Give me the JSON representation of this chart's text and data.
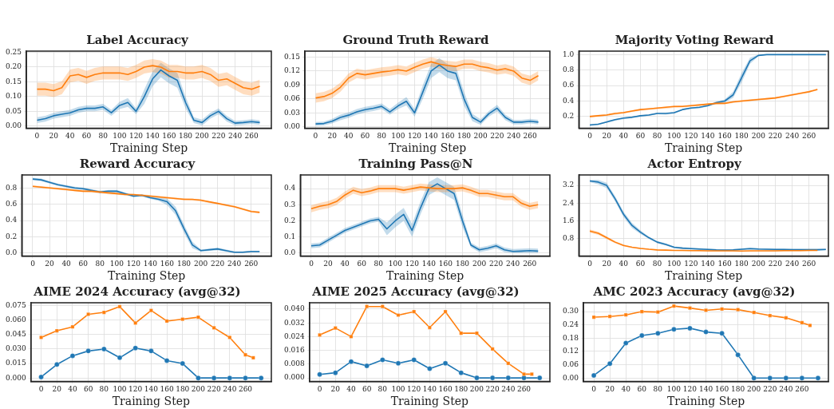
{
  "chart_data": [
    {
      "type": "line",
      "title": "Label Accuracy",
      "xlabel": "Training Step",
      "xlim": [
        -13,
        284
      ],
      "ylim": [
        -0.007,
        0.254
      ],
      "xticks": [
        0,
        20,
        40,
        60,
        80,
        100,
        120,
        140,
        160,
        180,
        200,
        220,
        240,
        260
      ],
      "yticks": [
        {
          "value": 0,
          "label": "0.00"
        },
        0.05,
        {
          "value": 0.1,
          "label": "0.10"
        },
        0.15,
        {
          "value": 0.2,
          "label": "0.20"
        },
        0.25
      ],
      "grid": true,
      "line_style": "solid",
      "series": [
        {
          "color": "#1f77b4",
          "x": [
            0,
            10,
            20,
            30,
            40,
            50,
            60,
            70,
            80,
            90,
            100,
            110,
            120,
            130,
            140,
            150,
            160,
            170,
            180,
            190,
            200,
            210,
            220,
            230,
            240,
            250,
            260,
            270
          ],
          "values": [
            0.02,
            0.025,
            0.035,
            0.04,
            0.045,
            0.055,
            0.06,
            0.06,
            0.065,
            0.045,
            0.07,
            0.08,
            0.05,
            0.1,
            0.16,
            0.19,
            0.17,
            0.155,
            0.08,
            0.02,
            0.012,
            0.035,
            0.05,
            0.025,
            0.01,
            0.012,
            0.015,
            0.012
          ],
          "lower": [
            0.01,
            0.015,
            0.025,
            0.03,
            0.035,
            0.045,
            0.05,
            0.05,
            0.055,
            0.035,
            0.058,
            0.065,
            0.04,
            0.075,
            0.135,
            0.165,
            0.145,
            0.13,
            0.06,
            0.01,
            0.002,
            0.025,
            0.04,
            0.015,
            0.002,
            0.004,
            0.007,
            0.004
          ],
          "upper": [
            0.03,
            0.035,
            0.045,
            0.05,
            0.055,
            0.065,
            0.07,
            0.07,
            0.075,
            0.055,
            0.082,
            0.095,
            0.06,
            0.125,
            0.185,
            0.215,
            0.195,
            0.18,
            0.1,
            0.03,
            0.022,
            0.045,
            0.06,
            0.035,
            0.018,
            0.02,
            0.023,
            0.02
          ]
        },
        {
          "color": "#ff7f0e",
          "x": [
            0,
            10,
            20,
            30,
            40,
            50,
            60,
            70,
            80,
            90,
            100,
            110,
            120,
            130,
            140,
            150,
            160,
            170,
            180,
            190,
            200,
            210,
            220,
            230,
            240,
            250,
            260,
            270
          ],
          "values": [
            0.125,
            0.125,
            0.12,
            0.13,
            0.17,
            0.175,
            0.165,
            0.175,
            0.18,
            0.18,
            0.18,
            0.175,
            0.185,
            0.2,
            0.205,
            0.2,
            0.185,
            0.185,
            0.18,
            0.18,
            0.185,
            0.175,
            0.155,
            0.16,
            0.145,
            0.13,
            0.125,
            0.135
          ],
          "lower": [
            0.103,
            0.103,
            0.098,
            0.108,
            0.148,
            0.153,
            0.143,
            0.153,
            0.158,
            0.158,
            0.158,
            0.153,
            0.163,
            0.178,
            0.183,
            0.178,
            0.163,
            0.163,
            0.158,
            0.158,
            0.163,
            0.153,
            0.133,
            0.138,
            0.123,
            0.108,
            0.103,
            0.113
          ],
          "upper": [
            0.147,
            0.147,
            0.142,
            0.152,
            0.192,
            0.197,
            0.187,
            0.197,
            0.202,
            0.202,
            0.202,
            0.197,
            0.207,
            0.222,
            0.227,
            0.222,
            0.207,
            0.207,
            0.202,
            0.202,
            0.207,
            0.197,
            0.177,
            0.182,
            0.167,
            0.152,
            0.147,
            0.157
          ]
        }
      ]
    },
    {
      "type": "line",
      "title": "Ground Truth Reward",
      "xlabel": "Training Step",
      "xlim": [
        -13,
        284
      ],
      "ylim": [
        -0.003,
        0.163
      ],
      "xticks": [
        0,
        20,
        40,
        60,
        80,
        100,
        120,
        140,
        160,
        180,
        200,
        220,
        240,
        260
      ],
      "yticks": [
        {
          "value": 0,
          "label": "0.00"
        },
        0.03,
        0.06,
        0.09,
        0.12,
        0.15
      ],
      "grid": true,
      "line_style": "solid",
      "series": [
        {
          "color": "#1f77b4",
          "x": [
            0,
            10,
            20,
            30,
            40,
            50,
            60,
            70,
            80,
            90,
            100,
            110,
            120,
            130,
            140,
            150,
            160,
            170,
            180,
            190,
            200,
            210,
            220,
            230,
            240,
            250,
            260,
            270
          ],
          "values": [
            0.006,
            0.007,
            0.012,
            0.02,
            0.025,
            0.032,
            0.037,
            0.04,
            0.044,
            0.032,
            0.045,
            0.055,
            0.03,
            0.075,
            0.12,
            0.133,
            0.12,
            0.115,
            0.06,
            0.02,
            0.01,
            0.028,
            0.04,
            0.02,
            0.01,
            0.01,
            0.012,
            0.01
          ],
          "lower": [
            0.002,
            0.003,
            0.007,
            0.014,
            0.019,
            0.026,
            0.031,
            0.034,
            0.038,
            0.026,
            0.038,
            0.046,
            0.022,
            0.06,
            0.105,
            0.118,
            0.105,
            0.1,
            0.045,
            0.012,
            0.004,
            0.022,
            0.033,
            0.014,
            0.005,
            0.005,
            0.007,
            0.005
          ],
          "upper": [
            0.01,
            0.011,
            0.017,
            0.026,
            0.031,
            0.038,
            0.043,
            0.046,
            0.05,
            0.038,
            0.052,
            0.064,
            0.038,
            0.09,
            0.135,
            0.148,
            0.135,
            0.13,
            0.075,
            0.028,
            0.016,
            0.034,
            0.047,
            0.026,
            0.015,
            0.015,
            0.017,
            0.015
          ]
        },
        {
          "color": "#ff7f0e",
          "x": [
            0,
            10,
            20,
            30,
            40,
            50,
            60,
            70,
            80,
            90,
            100,
            110,
            120,
            130,
            140,
            150,
            160,
            170,
            180,
            190,
            200,
            210,
            220,
            230,
            240,
            250,
            260,
            270
          ],
          "values": [
            0.062,
            0.065,
            0.072,
            0.085,
            0.105,
            0.115,
            0.112,
            0.115,
            0.118,
            0.12,
            0.123,
            0.12,
            0.128,
            0.135,
            0.14,
            0.135,
            0.132,
            0.13,
            0.135,
            0.135,
            0.13,
            0.127,
            0.122,
            0.125,
            0.12,
            0.105,
            0.1,
            0.11
          ],
          "lower": [
            0.052,
            0.055,
            0.062,
            0.075,
            0.095,
            0.105,
            0.102,
            0.105,
            0.108,
            0.11,
            0.113,
            0.11,
            0.118,
            0.125,
            0.13,
            0.125,
            0.122,
            0.12,
            0.125,
            0.125,
            0.12,
            0.117,
            0.112,
            0.115,
            0.11,
            0.095,
            0.09,
            0.1
          ],
          "upper": [
            0.072,
            0.075,
            0.082,
            0.095,
            0.115,
            0.125,
            0.122,
            0.125,
            0.128,
            0.13,
            0.133,
            0.13,
            0.138,
            0.145,
            0.15,
            0.145,
            0.142,
            0.14,
            0.145,
            0.145,
            0.14,
            0.137,
            0.132,
            0.135,
            0.13,
            0.115,
            0.11,
            0.12
          ]
        }
      ]
    },
    {
      "type": "line",
      "title": "Majority Voting Reward",
      "xlabel": "Training Step",
      "xlim": [
        -13,
        283
      ],
      "ylim": [
        0.05,
        1.045
      ],
      "xticks": [
        0,
        20,
        40,
        60,
        80,
        100,
        120,
        140,
        160,
        180,
        200,
        220,
        240,
        260
      ],
      "yticks": [
        0.2,
        0.4,
        0.6,
        0.8,
        {
          "value": 1,
          "label": "1.0"
        }
      ],
      "grid": true,
      "line_style": "solid",
      "series": [
        {
          "color": "#1f77b4",
          "x": [
            0,
            10,
            20,
            30,
            40,
            50,
            60,
            70,
            80,
            90,
            100,
            110,
            120,
            130,
            140,
            150,
            160,
            170,
            180,
            190,
            200,
            210,
            220,
            230,
            240,
            250,
            260,
            270,
            280
          ],
          "values": [
            0.09,
            0.1,
            0.13,
            0.16,
            0.18,
            0.19,
            0.21,
            0.22,
            0.24,
            0.24,
            0.25,
            0.29,
            0.31,
            0.32,
            0.34,
            0.38,
            0.4,
            0.48,
            0.7,
            0.92,
            0.99,
            1.0,
            1.0,
            1.0,
            1.0,
            1.0,
            1.0,
            1.0,
            1.0
          ],
          "lower": [
            0.08,
            0.09,
            0.12,
            0.145,
            0.165,
            0.18,
            0.195,
            0.21,
            0.23,
            0.225,
            0.235,
            0.28,
            0.3,
            0.305,
            0.33,
            0.365,
            0.38,
            0.44,
            0.64,
            0.88,
            0.98,
            0.995,
            0.995,
            0.995,
            0.995,
            0.995,
            0.995,
            0.995,
            0.995
          ],
          "upper": [
            0.1,
            0.11,
            0.14,
            0.165,
            0.185,
            0.2,
            0.215,
            0.23,
            0.25,
            0.245,
            0.255,
            0.3,
            0.32,
            0.325,
            0.35,
            0.395,
            0.42,
            0.52,
            0.76,
            0.96,
            1.0,
            1.0,
            1.0,
            1.0,
            1.0,
            1.0,
            1.0,
            1.0,
            1.0
          ]
        },
        {
          "color": "#ff7f0e",
          "x": [
            0,
            10,
            20,
            30,
            40,
            50,
            60,
            70,
            80,
            90,
            100,
            110,
            120,
            130,
            140,
            150,
            160,
            170,
            180,
            190,
            200,
            210,
            220,
            230,
            240,
            250,
            260,
            270
          ],
          "values": [
            0.2,
            0.21,
            0.22,
            0.24,
            0.25,
            0.27,
            0.29,
            0.3,
            0.31,
            0.32,
            0.33,
            0.33,
            0.34,
            0.35,
            0.36,
            0.37,
            0.37,
            0.39,
            0.4,
            0.41,
            0.42,
            0.43,
            0.44,
            0.46,
            0.48,
            0.5,
            0.52,
            0.55
          ],
          "lower": [
            0.188,
            0.198,
            0.208,
            0.223,
            0.238,
            0.258,
            0.273,
            0.283,
            0.293,
            0.303,
            0.313,
            0.318,
            0.328,
            0.338,
            0.348,
            0.353,
            0.358,
            0.373,
            0.388,
            0.398,
            0.408,
            0.418,
            0.428,
            0.448,
            0.468,
            0.488,
            0.508,
            0.538
          ],
          "upper": [
            0.212,
            0.222,
            0.232,
            0.247,
            0.262,
            0.282,
            0.297,
            0.307,
            0.317,
            0.327,
            0.337,
            0.342,
            0.352,
            0.362,
            0.372,
            0.377,
            0.382,
            0.397,
            0.412,
            0.422,
            0.432,
            0.442,
            0.452,
            0.472,
            0.492,
            0.512,
            0.532,
            0.562
          ]
        }
      ]
    },
    {
      "type": "line",
      "title": "Reward Accuracy",
      "xlabel": "Training Step",
      "xlim": [
        -13,
        284
      ],
      "ylim": [
        -0.036,
        0.96
      ],
      "xticks": [
        0,
        20,
        40,
        60,
        80,
        100,
        120,
        140,
        160,
        180,
        200,
        220,
        240,
        260
      ],
      "yticks": [
        {
          "value": 0,
          "label": "0.0"
        },
        0.2,
        0.4,
        0.6,
        0.8
      ],
      "grid": true,
      "line_style": "solid",
      "series": [
        {
          "color": "#1f77b4",
          "x": [
            0,
            10,
            20,
            30,
            40,
            50,
            60,
            70,
            80,
            90,
            100,
            110,
            120,
            130,
            140,
            150,
            160,
            170,
            180,
            190,
            200,
            210,
            220,
            230,
            240,
            250,
            260,
            270
          ],
          "values": [
            0.91,
            0.9,
            0.87,
            0.84,
            0.82,
            0.8,
            0.79,
            0.77,
            0.75,
            0.76,
            0.76,
            0.73,
            0.7,
            0.71,
            0.68,
            0.66,
            0.63,
            0.52,
            0.3,
            0.1,
            0.03,
            0.04,
            0.05,
            0.03,
            0.01,
            0.01,
            0.02,
            0.02
          ],
          "lower": [
            0.895,
            0.885,
            0.855,
            0.825,
            0.805,
            0.785,
            0.775,
            0.755,
            0.735,
            0.745,
            0.745,
            0.715,
            0.685,
            0.695,
            0.665,
            0.64,
            0.59,
            0.47,
            0.25,
            0.06,
            0.015,
            0.025,
            0.035,
            0.015,
            0.0,
            0.0,
            0.005,
            0.005
          ],
          "upper": [
            0.925,
            0.915,
            0.885,
            0.855,
            0.835,
            0.815,
            0.805,
            0.785,
            0.765,
            0.775,
            0.775,
            0.745,
            0.715,
            0.725,
            0.695,
            0.68,
            0.67,
            0.57,
            0.35,
            0.14,
            0.045,
            0.055,
            0.065,
            0.045,
            0.02,
            0.02,
            0.025,
            0.025
          ]
        },
        {
          "color": "#ff7f0e",
          "x": [
            0,
            10,
            20,
            30,
            40,
            50,
            60,
            70,
            80,
            90,
            100,
            110,
            120,
            130,
            140,
            150,
            160,
            170,
            180,
            190,
            200,
            210,
            220,
            230,
            240,
            250,
            260,
            270
          ],
          "values": [
            0.82,
            0.81,
            0.8,
            0.79,
            0.78,
            0.77,
            0.76,
            0.76,
            0.75,
            0.74,
            0.73,
            0.72,
            0.72,
            0.71,
            0.7,
            0.69,
            0.68,
            0.67,
            0.66,
            0.66,
            0.65,
            0.63,
            0.61,
            0.59,
            0.57,
            0.54,
            0.51,
            0.5
          ],
          "lower": [
            0.808,
            0.798,
            0.788,
            0.778,
            0.768,
            0.758,
            0.748,
            0.743,
            0.733,
            0.723,
            0.718,
            0.708,
            0.703,
            0.698,
            0.688,
            0.678,
            0.668,
            0.658,
            0.648,
            0.643,
            0.633,
            0.613,
            0.598,
            0.578,
            0.558,
            0.528,
            0.498,
            0.488
          ],
          "upper": [
            0.832,
            0.822,
            0.812,
            0.802,
            0.792,
            0.782,
            0.772,
            0.767,
            0.757,
            0.747,
            0.742,
            0.732,
            0.727,
            0.722,
            0.712,
            0.702,
            0.692,
            0.682,
            0.672,
            0.667,
            0.657,
            0.637,
            0.622,
            0.602,
            0.582,
            0.552,
            0.522,
            0.512
          ]
        }
      ]
    },
    {
      "type": "line",
      "title": "Training Pass@N",
      "xlabel": "Training Step",
      "xlim": [
        -13,
        284
      ],
      "ylim": [
        -0.018,
        0.485
      ],
      "xticks": [
        0,
        20,
        40,
        60,
        80,
        100,
        120,
        140,
        160,
        180,
        200,
        220,
        240,
        260
      ],
      "yticks": [
        {
          "value": 0,
          "label": "0.0"
        },
        0.1,
        0.2,
        0.3,
        0.4
      ],
      "grid": true,
      "line_style": "solid",
      "series": [
        {
          "color": "#1f77b4",
          "x": [
            0,
            10,
            20,
            30,
            40,
            50,
            60,
            70,
            80,
            90,
            100,
            110,
            120,
            130,
            140,
            150,
            160,
            170,
            180,
            190,
            200,
            210,
            220,
            230,
            240,
            250,
            260,
            270
          ],
          "values": [
            0.045,
            0.05,
            0.08,
            0.11,
            0.14,
            0.16,
            0.18,
            0.2,
            0.21,
            0.15,
            0.2,
            0.24,
            0.14,
            0.28,
            0.4,
            0.43,
            0.4,
            0.37,
            0.2,
            0.05,
            0.02,
            0.03,
            0.045,
            0.02,
            0.01,
            0.012,
            0.015,
            0.012
          ],
          "lower": [
            0.03,
            0.035,
            0.065,
            0.095,
            0.125,
            0.145,
            0.165,
            0.185,
            0.195,
            0.11,
            0.16,
            0.2,
            0.1,
            0.24,
            0.36,
            0.39,
            0.36,
            0.33,
            0.16,
            0.035,
            0.005,
            0.015,
            0.03,
            0.005,
            0.0,
            0.0,
            0.0,
            0.0
          ],
          "upper": [
            0.06,
            0.065,
            0.095,
            0.125,
            0.155,
            0.175,
            0.195,
            0.215,
            0.225,
            0.19,
            0.24,
            0.28,
            0.18,
            0.32,
            0.44,
            0.47,
            0.44,
            0.41,
            0.24,
            0.065,
            0.035,
            0.045,
            0.06,
            0.035,
            0.025,
            0.027,
            0.03,
            0.027
          ]
        },
        {
          "color": "#ff7f0e",
          "x": [
            0,
            10,
            20,
            30,
            40,
            50,
            60,
            70,
            80,
            90,
            100,
            110,
            120,
            130,
            140,
            150,
            160,
            170,
            180,
            190,
            200,
            210,
            220,
            230,
            240,
            250,
            260,
            270
          ],
          "values": [
            0.275,
            0.29,
            0.3,
            0.32,
            0.36,
            0.39,
            0.375,
            0.385,
            0.4,
            0.4,
            0.4,
            0.39,
            0.4,
            0.41,
            0.405,
            0.4,
            0.4,
            0.4,
            0.405,
            0.39,
            0.37,
            0.37,
            0.36,
            0.35,
            0.35,
            0.31,
            0.29,
            0.3
          ],
          "lower": [
            0.253,
            0.268,
            0.278,
            0.298,
            0.338,
            0.368,
            0.353,
            0.363,
            0.378,
            0.378,
            0.378,
            0.368,
            0.378,
            0.388,
            0.383,
            0.378,
            0.378,
            0.378,
            0.383,
            0.368,
            0.348,
            0.348,
            0.338,
            0.328,
            0.328,
            0.288,
            0.268,
            0.278
          ],
          "upper": [
            0.297,
            0.312,
            0.322,
            0.342,
            0.382,
            0.412,
            0.397,
            0.407,
            0.422,
            0.422,
            0.422,
            0.412,
            0.422,
            0.432,
            0.427,
            0.422,
            0.422,
            0.422,
            0.427,
            0.412,
            0.392,
            0.392,
            0.382,
            0.372,
            0.372,
            0.332,
            0.312,
            0.322
          ]
        }
      ]
    },
    {
      "type": "line",
      "title": "Actor Entropy",
      "xlabel": "Training Step",
      "xlim": [
        -13,
        283
      ],
      "ylim": [
        0.03,
        3.67
      ],
      "xticks": [
        0,
        20,
        40,
        60,
        80,
        100,
        120,
        140,
        160,
        180,
        200,
        220,
        240,
        260
      ],
      "yticks": [
        0.8,
        1.6,
        2.4,
        3.2
      ],
      "grid": true,
      "line_style": "solid",
      "series": [
        {
          "color": "#1f77b4",
          "x": [
            0,
            10,
            20,
            30,
            40,
            50,
            60,
            70,
            80,
            90,
            100,
            110,
            120,
            130,
            140,
            150,
            160,
            170,
            180,
            190,
            200,
            210,
            220,
            230,
            240,
            250,
            260,
            270,
            280
          ],
          "values": [
            3.4,
            3.35,
            3.2,
            2.6,
            1.9,
            1.4,
            1.1,
            0.85,
            0.65,
            0.55,
            0.42,
            0.38,
            0.36,
            0.34,
            0.32,
            0.3,
            0.29,
            0.3,
            0.33,
            0.36,
            0.34,
            0.33,
            0.32,
            0.32,
            0.31,
            0.31,
            0.31,
            0.31,
            0.32
          ],
          "lower": [
            3.35,
            3.25,
            3.08,
            2.48,
            1.78,
            1.28,
            1.02,
            0.8,
            0.6,
            0.5,
            0.38,
            0.34,
            0.32,
            0.3,
            0.28,
            0.26,
            0.25,
            0.26,
            0.29,
            0.32,
            0.3,
            0.29,
            0.28,
            0.28,
            0.27,
            0.27,
            0.27,
            0.27,
            0.28
          ],
          "upper": [
            3.45,
            3.45,
            3.32,
            2.72,
            2.02,
            1.52,
            1.18,
            0.9,
            0.7,
            0.6,
            0.46,
            0.42,
            0.4,
            0.38,
            0.36,
            0.34,
            0.33,
            0.34,
            0.37,
            0.4,
            0.38,
            0.37,
            0.36,
            0.36,
            0.35,
            0.35,
            0.35,
            0.35,
            0.36
          ]
        },
        {
          "color": "#ff7f0e",
          "x": [
            0,
            10,
            20,
            30,
            40,
            50,
            60,
            70,
            80,
            90,
            100,
            110,
            120,
            130,
            140,
            150,
            160,
            170,
            180,
            190,
            200,
            210,
            220,
            230,
            240,
            250,
            260,
            270
          ],
          "values": [
            1.15,
            1.05,
            0.85,
            0.65,
            0.5,
            0.42,
            0.37,
            0.33,
            0.3,
            0.29,
            0.28,
            0.28,
            0.27,
            0.27,
            0.26,
            0.26,
            0.26,
            0.26,
            0.25,
            0.26,
            0.26,
            0.26,
            0.26,
            0.27,
            0.27,
            0.27,
            0.28,
            0.28
          ],
          "lower": [
            1.08,
            0.98,
            0.79,
            0.6,
            0.46,
            0.39,
            0.34,
            0.31,
            0.28,
            0.27,
            0.26,
            0.255,
            0.25,
            0.245,
            0.24,
            0.24,
            0.24,
            0.235,
            0.23,
            0.235,
            0.24,
            0.24,
            0.24,
            0.245,
            0.25,
            0.25,
            0.255,
            0.26
          ],
          "upper": [
            1.22,
            1.12,
            0.91,
            0.7,
            0.54,
            0.45,
            0.4,
            0.35,
            0.32,
            0.31,
            0.3,
            0.295,
            0.29,
            0.285,
            0.28,
            0.28,
            0.28,
            0.275,
            0.27,
            0.275,
            0.28,
            0.28,
            0.28,
            0.285,
            0.29,
            0.29,
            0.295,
            0.3
          ]
        }
      ]
    },
    {
      "type": "line",
      "title": "AIME 2024 Accuracy (avg@32)",
      "xlabel": "Training Step",
      "xlim": [
        -13,
        293
      ],
      "ylim": [
        -0.0035,
        0.078
      ],
      "xticks": [
        0,
        20,
        40,
        60,
        80,
        100,
        120,
        140,
        160,
        180,
        200,
        220,
        240,
        260
      ],
      "yticks": [
        {
          "value": 0,
          "label": "0.000"
        },
        0.015,
        {
          "value": 0.03,
          "label": "0.030"
        },
        0.045,
        {
          "value": 0.06,
          "label": "0.060"
        },
        0.075
      ],
      "grid": true,
      "line_style": "solid",
      "series": [
        {
          "color": "#1f77b4",
          "marker": "circle",
          "x": [
            0,
            20,
            40,
            60,
            80,
            100,
            120,
            140,
            160,
            180,
            200,
            220,
            240,
            260,
            280
          ],
          "values": [
            0.001,
            0.014,
            0.023,
            0.028,
            0.03,
            0.021,
            0.031,
            0.028,
            0.018,
            0.015,
            0,
            0,
            0,
            0,
            0
          ]
        },
        {
          "color": "#ff7f0e",
          "marker": "square",
          "x": [
            0,
            20,
            40,
            60,
            80,
            100,
            120,
            140,
            160,
            180,
            200,
            220,
            240,
            260,
            270
          ],
          "values": [
            0.042,
            0.049,
            0.053,
            0.066,
            0.068,
            0.074,
            0.057,
            0.07,
            0.059,
            0.061,
            0.063,
            0.052,
            0.042,
            0.024,
            0.021
          ]
        }
      ]
    },
    {
      "type": "line",
      "title": "AIME 2025 Accuracy (avg@32)",
      "xlabel": "Training Step",
      "xlim": [
        -13,
        293
      ],
      "ylim": [
        -0.002,
        0.0437
      ],
      "xticks": [
        0,
        20,
        40,
        60,
        80,
        100,
        120,
        140,
        160,
        180,
        200,
        220,
        240,
        260
      ],
      "yticks": [
        {
          "value": 0,
          "label": "0.000"
        },
        0.008,
        0.016,
        0.024,
        0.032,
        {
          "value": 0.04,
          "label": "0.040"
        }
      ],
      "grid": true,
      "line_style": "solid",
      "series": [
        {
          "color": "#1f77b4",
          "marker": "circle",
          "x": [
            0,
            20,
            40,
            60,
            80,
            100,
            120,
            140,
            160,
            180,
            200,
            220,
            240,
            260,
            280
          ],
          "values": [
            0.002,
            0.003,
            0.0095,
            0.007,
            0.0105,
            0.0085,
            0.0105,
            0.0054,
            0.0085,
            0.003,
            0,
            0,
            0,
            0,
            0
          ]
        },
        {
          "color": "#ff7f0e",
          "marker": "square",
          "x": [
            0,
            20,
            40,
            60,
            80,
            100,
            120,
            140,
            160,
            180,
            200,
            220,
            240,
            260,
            270
          ],
          "values": [
            0.025,
            0.029,
            0.024,
            0.0415,
            0.0415,
            0.0365,
            0.0385,
            0.0293,
            0.0385,
            0.026,
            0.026,
            0.0168,
            0.0085,
            0.0022,
            0.0022
          ]
        }
      ]
    },
    {
      "type": "line",
      "title": "AMC 2023 Accuracy (avg@32)",
      "xlabel": "Training Step",
      "xlim": [
        -13,
        293
      ],
      "ylim": [
        -0.015,
        0.34
      ],
      "xticks": [
        0,
        20,
        40,
        60,
        80,
        100,
        120,
        140,
        160,
        180,
        200,
        220,
        240,
        260
      ],
      "yticks": [
        {
          "value": 0,
          "label": "0.00"
        },
        0.06,
        0.12,
        0.18,
        0.24,
        {
          "value": 0.3,
          "label": "0.30"
        }
      ],
      "grid": true,
      "line_style": "solid",
      "series": [
        {
          "color": "#1f77b4",
          "marker": "circle",
          "x": [
            0,
            20,
            40,
            60,
            80,
            100,
            120,
            140,
            160,
            180,
            200,
            220,
            240,
            260,
            280
          ],
          "values": [
            0.012,
            0.065,
            0.158,
            0.192,
            0.202,
            0.22,
            0.225,
            0.208,
            0.202,
            0.105,
            0,
            0,
            0,
            0,
            0
          ]
        },
        {
          "color": "#ff7f0e",
          "marker": "square",
          "x": [
            0,
            20,
            40,
            60,
            80,
            100,
            120,
            140,
            160,
            180,
            200,
            220,
            240,
            260,
            270
          ],
          "values": [
            0.275,
            0.278,
            0.285,
            0.3,
            0.298,
            0.325,
            0.316,
            0.306,
            0.312,
            0.309,
            0.296,
            0.282,
            0.272,
            0.25,
            0.238
          ]
        }
      ]
    }
  ]
}
